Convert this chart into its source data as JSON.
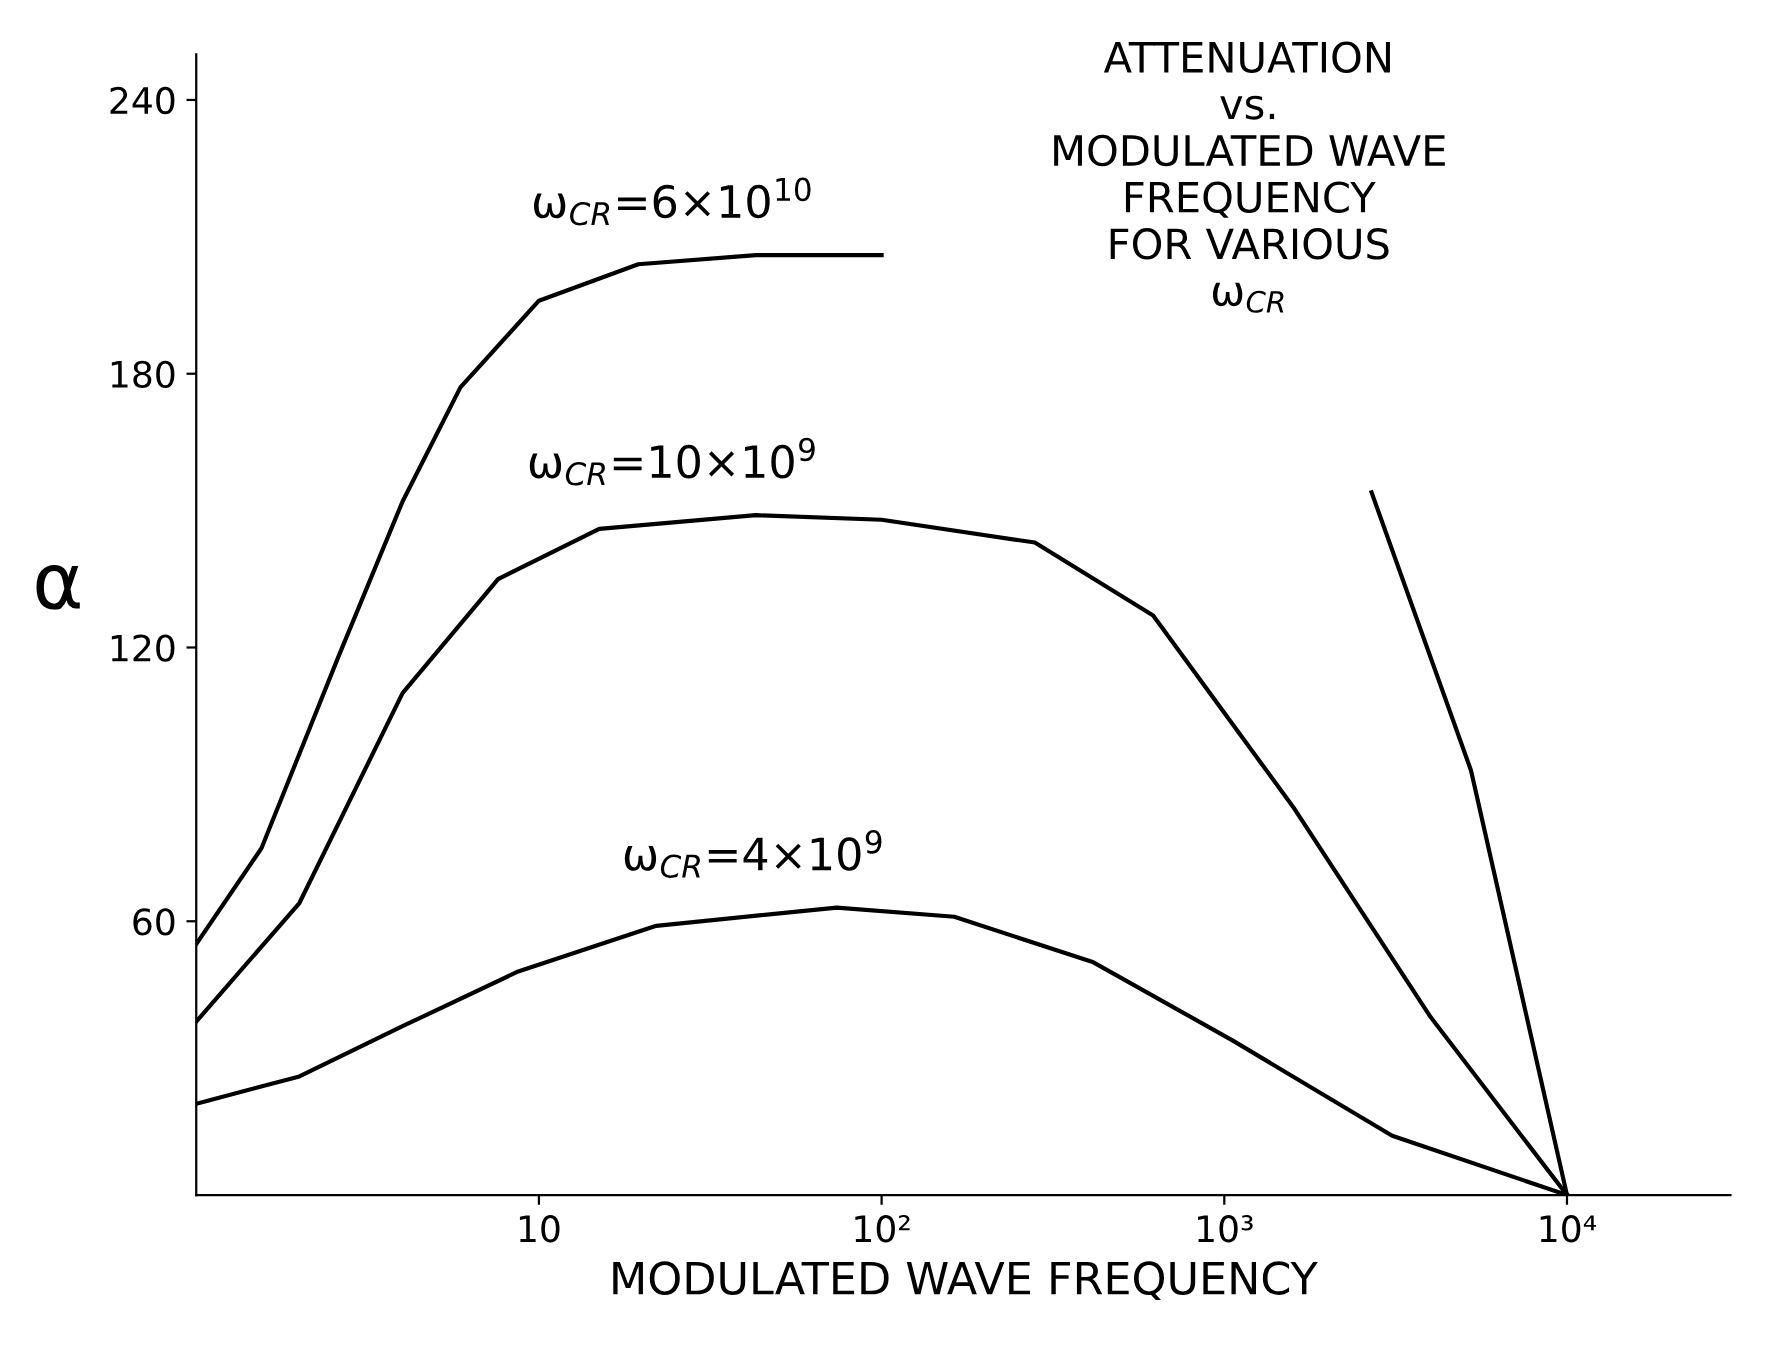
{
  "chart_data": {
    "type": "line",
    "title": "ATTENUATION\nvs.\nMODULATED WAVE\nFREQUENCY\nFOR VARIOUS\nω$_{CR}$",
    "xlabel": "MODULATED WAVE FREQUENCY",
    "ylabel": "α",
    "series": [
      {
        "name": "ω$_{CR}$=6×10$^{10}$",
        "color": "#000000",
        "x": [
          1,
          1.55,
          2.6,
          4,
          5.9,
          10,
          19.5,
          43,
          100,
          1000,
          2690,
          5250,
          10000
        ],
        "values": [
          55,
          76,
          118,
          152,
          177,
          196,
          204,
          206,
          206,
          null,
          154,
          93,
          0
        ]
      },
      {
        "name": "ω$_{CR}$=10×10$^{9}$",
        "color": "#000000",
        "x": [
          1,
          2,
          4,
          7.6,
          15,
          43,
          100,
          280,
          620,
          1590,
          4000,
          10000
        ],
        "values": [
          38,
          64,
          110,
          135,
          146,
          149,
          148,
          143,
          127,
          85,
          39,
          0
        ]
      },
      {
        "name": "ω$_{CR}$=4×10$^{9}$",
        "color": "#000000",
        "x": [
          1,
          2,
          4,
          8.7,
          22,
          74,
          163,
          415,
          1050,
          3090,
          10000
        ],
        "values": [
          20,
          26,
          37,
          49,
          59,
          63,
          61,
          51,
          34,
          13,
          0
        ]
      }
    ],
    "log": "x",
    "xlim": [
      1,
      30000
    ],
    "ylim": [
      0,
      250
    ],
    "xticks": [
      {
        "value": 10,
        "label": "10"
      },
      {
        "value": 100,
        "label": "10²"
      },
      {
        "value": 1000,
        "label": "10³"
      },
      {
        "value": 10000,
        "label": "10⁴"
      }
    ],
    "yticks": [
      60,
      120,
      180,
      240
    ],
    "grid": false,
    "legend": false,
    "marker": "none",
    "line_style": "solid"
  }
}
